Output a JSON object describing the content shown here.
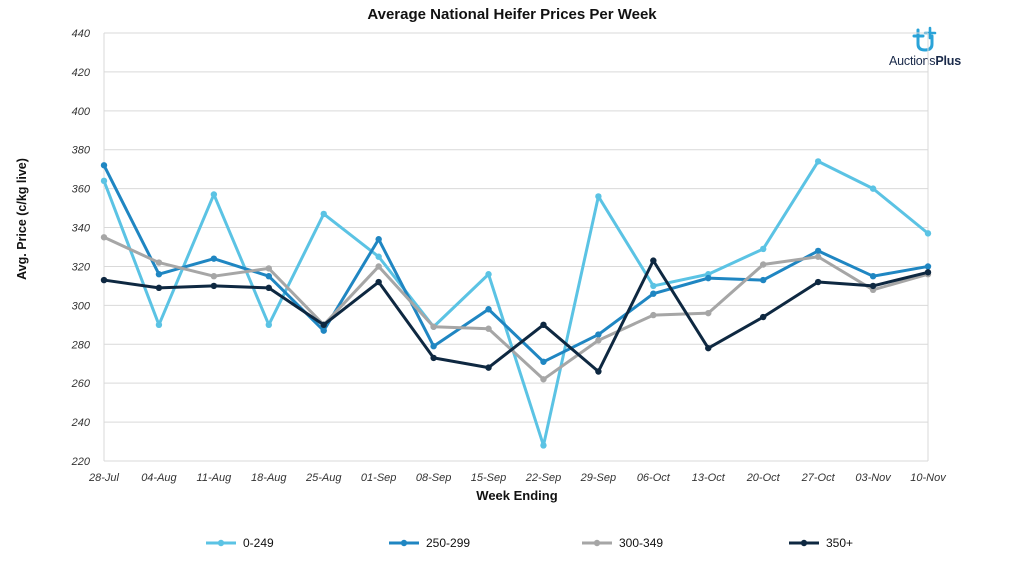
{
  "chart_data": {
    "type": "line",
    "title": "Average National Heifer Prices Per Week",
    "xlabel": "Week Ending",
    "ylabel": "Avg. Price (c/kg live)",
    "ylim": [
      220,
      440
    ],
    "yticks": [
      220,
      240,
      260,
      280,
      300,
      320,
      340,
      360,
      380,
      400,
      420,
      440
    ],
    "grid": true,
    "legend_position": "bottom",
    "categories": [
      "28-Jul",
      "04-Aug",
      "11-Aug",
      "18-Aug",
      "25-Aug",
      "01-Sep",
      "08-Sep",
      "15-Sep",
      "22-Sep",
      "29-Sep",
      "06-Oct",
      "13-Oct",
      "20-Oct",
      "27-Oct",
      "03-Nov",
      "10-Nov"
    ],
    "series": [
      {
        "name": "0-249",
        "color": "#5bc3e4",
        "values": [
          364,
          290,
          357,
          290,
          347,
          325,
          289,
          316,
          228,
          356,
          310,
          316,
          329,
          374,
          360,
          337
        ]
      },
      {
        "name": "250-299",
        "color": "#1f86c2",
        "values": [
          372,
          316,
          324,
          315,
          287,
          334,
          279,
          298,
          271,
          285,
          306,
          314,
          313,
          328,
          315,
          320
        ]
      },
      {
        "name": "300-349",
        "color": "#a6a6a6",
        "values": [
          335,
          322,
          315,
          319,
          290,
          320,
          289,
          288,
          262,
          282,
          295,
          296,
          321,
          325,
          308,
          316
        ]
      },
      {
        "name": "350+",
        "color": "#0e2841",
        "values": [
          313,
          309,
          310,
          309,
          290,
          312,
          273,
          268,
          290,
          266,
          323,
          278,
          294,
          312,
          310,
          317
        ]
      }
    ]
  },
  "logo": {
    "text_regular": "Auctions",
    "text_bold": "Plus"
  }
}
